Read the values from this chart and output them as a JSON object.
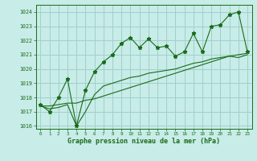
{
  "xlabel": "Graphe pression niveau de la mer (hPa)",
  "background_color": "#c8ece8",
  "grid_color": "#a0d0cc",
  "line_color": "#1a6b1a",
  "ylim": [
    1015.8,
    1024.5
  ],
  "xlim": [
    -0.5,
    23.5
  ],
  "yticks": [
    1016,
    1017,
    1018,
    1019,
    1020,
    1021,
    1022,
    1023,
    1024
  ],
  "xticks": [
    0,
    1,
    2,
    3,
    4,
    5,
    6,
    7,
    8,
    9,
    10,
    11,
    12,
    13,
    14,
    15,
    16,
    17,
    18,
    19,
    20,
    21,
    22,
    23
  ],
  "main_y": [
    1017.5,
    1017.0,
    1018.0,
    1019.3,
    1016.0,
    1018.5,
    1019.8,
    1020.5,
    1021.0,
    1021.8,
    1022.2,
    1021.5,
    1022.1,
    1021.5,
    1021.6,
    1020.9,
    1021.2,
    1022.5,
    1021.2,
    1023.0,
    1023.1,
    1023.8,
    1024.0,
    1021.2
  ],
  "trend1_y": [
    1017.4,
    1017.4,
    1017.5,
    1017.6,
    1017.6,
    1017.8,
    1017.9,
    1018.1,
    1018.3,
    1018.5,
    1018.7,
    1018.9,
    1019.1,
    1019.3,
    1019.5,
    1019.7,
    1019.9,
    1020.1,
    1020.3,
    1020.5,
    1020.7,
    1020.9,
    1021.0,
    1021.1
  ],
  "trend2_y": [
    1017.4,
    1017.2,
    1017.3,
    1017.5,
    1016.0,
    1017.0,
    1018.2,
    1018.8,
    1019.0,
    1019.2,
    1019.4,
    1019.5,
    1019.7,
    1019.8,
    1019.9,
    1020.0,
    1020.2,
    1020.4,
    1020.5,
    1020.7,
    1020.8,
    1020.9,
    1020.8,
    1021.0
  ]
}
